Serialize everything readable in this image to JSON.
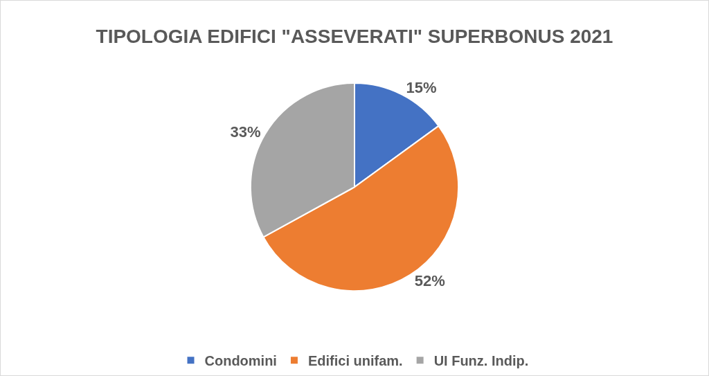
{
  "chart_data": {
    "type": "pie",
    "title": "TIPOLOGIA EDIFICI \"ASSEVERATI\" SUPERBONUS 2021",
    "categories": [
      "Condomini",
      "Edifici unifam.",
      "UI Funz. Indip."
    ],
    "values": [
      15,
      52,
      33
    ],
    "value_labels": [
      "15%",
      "52%",
      "33%"
    ],
    "colors": [
      "#4472c4",
      "#ed7d31",
      "#a5a5a5"
    ],
    "legend": "bottom"
  }
}
